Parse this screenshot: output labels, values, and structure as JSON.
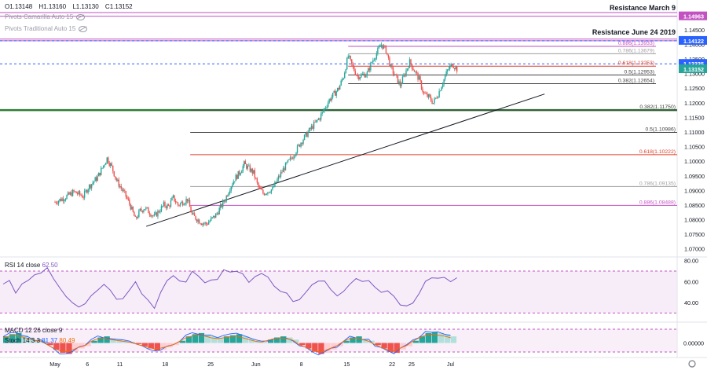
{
  "header": {
    "ohlc": [
      "O1.13148",
      "H1.13160",
      "L1.13130",
      "C1.13152"
    ],
    "legend_lines": [
      "Pivots Camarilla Auto 15",
      "Pivots Traditional Auto 15"
    ]
  },
  "annotations": {
    "resistance_march": "Resistance March 9",
    "resistance_june": "Resistance June 24 2019"
  },
  "colors": {
    "up": "#26a69a",
    "down": "#ef5350",
    "purple": "#c252c2",
    "fib_red": "#e0412a",
    "fib_gray": "#9e9e9e",
    "green_line": "#2e7d32",
    "blue": "#2962ff",
    "rsi": "#7e57c2"
  },
  "chart_data": [
    {
      "type": "candlestick",
      "ylim": [
        1.0675,
        1.1525
      ],
      "y_ticks": [
        "1.14500",
        "1.14000",
        "1.13500",
        "1.13000",
        "1.12500",
        "1.12000",
        "1.11500",
        "1.11000",
        "1.10500",
        "1.10000",
        "1.09500",
        "1.09000",
        "1.08500",
        "1.08000",
        "1.07500",
        "1.07000"
      ],
      "x_ticks": [
        {
          "label": "May",
          "day": 0
        },
        {
          "label": "6",
          "day": 5
        },
        {
          "label": "11",
          "day": 10
        },
        {
          "label": "18",
          "day": 17
        },
        {
          "label": "25",
          "day": 24
        },
        {
          "label": "Jun",
          "day": 31
        },
        {
          "label": "8",
          "day": 38
        },
        {
          "label": "15",
          "day": 45
        },
        {
          "label": "22",
          "day": 52
        },
        {
          "label": "25",
          "day": 55
        },
        {
          "label": "Jul",
          "day": 61
        }
      ],
      "price_labels": [
        {
          "value": 1.14963,
          "text": "1.14963",
          "color": "#c252c2"
        },
        {
          "value": 1.14122,
          "text": "1.14122",
          "color": "#2962ff"
        },
        {
          "value": 1.13335,
          "text": "1.13335",
          "color": "#2962ff"
        },
        {
          "value": 1.13152,
          "text": "1.13152",
          "color": "#26a69a"
        }
      ],
      "horizontal_lines": [
        {
          "value": 1.1509,
          "color": "#c252c2",
          "style": "solid"
        },
        {
          "value": 1.14963,
          "color": "#c252c2",
          "style": "solid"
        },
        {
          "value": 1.1418,
          "color": "#c252c2",
          "style": "solid"
        },
        {
          "value": 1.14122,
          "color": "#c252c2",
          "style": "solid"
        },
        {
          "value": 1.14122,
          "color": "#2962ff",
          "style": "dashed"
        },
        {
          "value": 1.13335,
          "color": "#2962ff",
          "style": "dashed"
        },
        {
          "value": 1.1175,
          "color": "#2e7d32",
          "style": "thick"
        }
      ],
      "fib_small": [
        {
          "text": "0.886(1.13933)",
          "value": 1.13933,
          "color": "#c252c2"
        },
        {
          "text": "0.786(1.13679)",
          "value": 1.13679,
          "color": "#9e9e9e"
        },
        {
          "text": "0.618(1.13253)",
          "value": 1.13253,
          "color": "#e0412a"
        },
        {
          "text": "0.5(1.12953)",
          "value": 1.12953,
          "color": "#424242"
        },
        {
          "text": "0.382(1.12654)",
          "value": 1.12654,
          "color": "#424242"
        }
      ],
      "fib_large": [
        {
          "text": "0.382(1.11750)",
          "value": 1.1175,
          "color": "#424242"
        },
        {
          "text": "0.5(1.10986)",
          "value": 1.10986,
          "color": "#424242"
        },
        {
          "text": "0.618(1.10222)",
          "value": 1.10222,
          "color": "#e0412a"
        },
        {
          "text": "0.786(1.09135)",
          "value": 1.09135,
          "color": "#9e9e9e"
        },
        {
          "text": "0.886(1.08488)",
          "value": 1.08488,
          "color": "#c252c2"
        }
      ],
      "trendline": {
        "from": {
          "day": 19.3,
          "price": 1.0777
        },
        "to": {
          "day": 62,
          "price": 1.123
        }
      },
      "close_path": [
        [
          0,
          1.086
        ],
        [
          2,
          1.0875
        ],
        [
          4,
          1.0895
        ],
        [
          6,
          1.088
        ],
        [
          7,
          1.091
        ],
        [
          9,
          1.0945
        ],
        [
          11,
          1.101
        ],
        [
          12,
          1.098
        ],
        [
          13,
          1.0935
        ],
        [
          15,
          1.088
        ],
        [
          16,
          1.0845
        ],
        [
          17,
          1.08
        ],
        [
          18,
          1.083
        ],
        [
          19,
          1.084
        ],
        [
          21,
          1.081
        ],
        [
          23,
          1.085
        ],
        [
          24,
          1.0845
        ],
        [
          25,
          1.0875
        ],
        [
          26,
          1.085
        ],
        [
          28,
          1.087
        ],
        [
          29,
          1.0815
        ],
        [
          31,
          1.079
        ],
        [
          32,
          1.0785
        ],
        [
          34,
          1.0815
        ],
        [
          36,
          1.087
        ],
        [
          37,
          1.091
        ],
        [
          38,
          1.094
        ],
        [
          39,
          1.096
        ],
        [
          40,
          1.099
        ],
        [
          42,
          1.096
        ],
        [
          43,
          1.091
        ],
        [
          44,
          1.089
        ],
        [
          46,
          1.0905
        ],
        [
          47,
          1.0935
        ],
        [
          48,
          1.0965
        ],
        [
          49,
          1.099
        ],
        [
          50,
          1.101
        ],
        [
          52,
          1.1065
        ],
        [
          54,
          1.111
        ],
        [
          56,
          1.115
        ],
        [
          57,
          1.118
        ],
        [
          58,
          1.121
        ],
        [
          60,
          1.125
        ],
        [
          61,
          1.129
        ],
        [
          62,
          1.136
        ],
        [
          63,
          1.132
        ],
        [
          64,
          1.129
        ],
        [
          66,
          1.13
        ],
        [
          67,
          1.134
        ],
        [
          68,
          1.137
        ],
        [
          69,
          1.14
        ],
        [
          70,
          1.138
        ],
        [
          71,
          1.132
        ],
        [
          72,
          1.129
        ],
        [
          73,
          1.126
        ],
        [
          74,
          1.13
        ],
        [
          75,
          1.134
        ],
        [
          76,
          1.131
        ],
        [
          77,
          1.128
        ],
        [
          78,
          1.123
        ],
        [
          79,
          1.122
        ],
        [
          80,
          1.12
        ],
        [
          81,
          1.123
        ],
        [
          82,
          1.127
        ],
        [
          83,
          1.131
        ],
        [
          84,
          1.1333
        ],
        [
          85,
          1.1315
        ]
      ]
    },
    {
      "type": "line",
      "title": "RSI 14 close",
      "value_label": "62.50",
      "ylim": [
        22,
        82
      ],
      "y_ticks": [
        "80.00",
        "60.00",
        "40.00"
      ],
      "series": [
        {
          "values": [
            55,
            60,
            52,
            58,
            62,
            66,
            70,
            72,
            60,
            54,
            48,
            40,
            34,
            36,
            46,
            52,
            56,
            50,
            46,
            42,
            52,
            58,
            48,
            40,
            36,
            50,
            60,
            64,
            58,
            62,
            68,
            66,
            58,
            60,
            64,
            70,
            72,
            68,
            66,
            62,
            64,
            70,
            66,
            58,
            52,
            46,
            40,
            42,
            48,
            56,
            60,
            58,
            52,
            46,
            48,
            56,
            60,
            62,
            60,
            56,
            52,
            50,
            44,
            40,
            38,
            42,
            48,
            58,
            64,
            66,
            62,
            61,
            62
          ]
        }
      ]
    },
    {
      "type": "bar",
      "title": "MACD 12 26 close 9",
      "title2": "Stoch 14 3 3",
      "stoch_values": [
        "81.37",
        "80.49"
      ],
      "y_ticks": [
        "0.00000"
      ],
      "values": [
        0.6,
        0.8,
        0.9,
        0.7,
        0.5,
        0.3,
        0.2,
        -0.2,
        -0.6,
        -0.9,
        -1.0,
        -0.8,
        -0.5,
        -0.3,
        0.2,
        0.5,
        0.6,
        0.4,
        0.3,
        0.2,
        0.1,
        -0.1,
        -0.3,
        -0.5,
        -0.7,
        -0.6,
        -0.4,
        -0.2,
        0.2,
        0.6,
        0.8,
        0.9,
        0.8,
        0.6,
        0.5,
        0.6,
        0.7,
        0.8,
        0.6,
        0.4,
        0.2,
        0.1,
        0.3,
        0.5,
        0.6,
        0.5,
        0.3,
        -0.2,
        -0.5,
        -0.8,
        -1.0,
        -0.9,
        -0.6,
        -0.3,
        0.2,
        0.5,
        0.6,
        0.4,
        0.2,
        -0.2,
        -0.5,
        -0.8,
        -0.9,
        -0.6,
        -0.3,
        0.2,
        0.6,
        0.9,
        1.0,
        0.9,
        0.8,
        0.6
      ]
    }
  ]
}
